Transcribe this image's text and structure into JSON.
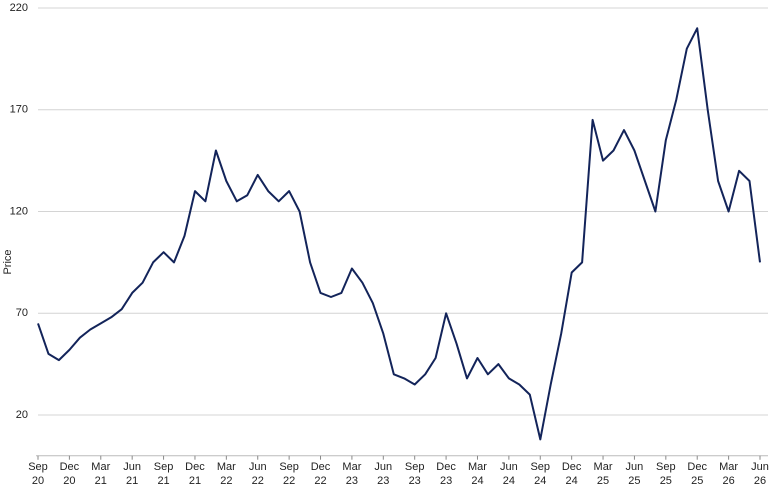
{
  "chart_data": {
    "type": "line",
    "y_label": "Price",
    "x": [
      "2020-09",
      "2020-10",
      "2020-11",
      "2020-12",
      "2021-01",
      "2021-02",
      "2021-03",
      "2021-04",
      "2021-05",
      "2021-06",
      "2021-07",
      "2021-08",
      "2021-09",
      "2021-10",
      "2021-11",
      "2021-12",
      "2022-01",
      "2022-02",
      "2022-03",
      "2022-04",
      "2022-05",
      "2022-06",
      "2022-07",
      "2022-08",
      "2022-09",
      "2022-10",
      "2022-11",
      "2022-12",
      "2023-01",
      "2023-02",
      "2023-03",
      "2023-04",
      "2023-05",
      "2023-06",
      "2023-07",
      "2023-08",
      "2023-09",
      "2023-10",
      "2023-11",
      "2023-12",
      "2024-01",
      "2024-02",
      "2024-03",
      "2024-04",
      "2024-05",
      "2024-06",
      "2024-07",
      "2024-08",
      "2024-09",
      "2024-10",
      "2024-11",
      "2024-12",
      "2025-01",
      "2025-02",
      "2025-03",
      "2025-04",
      "2025-05",
      "2025-06",
      "2025-07",
      "2025-08",
      "2025-09",
      "2025-10",
      "2025-11",
      "2025-12",
      "2026-01",
      "2026-02",
      "2026-03",
      "2026-04",
      "2026-05",
      "2026-06"
    ],
    "series": [
      {
        "name": "Price",
        "color": "#13245a",
        "values": [
          65,
          50,
          47,
          52,
          58,
          62,
          65,
          68,
          72,
          80,
          85,
          95,
          100,
          95,
          108,
          130,
          125,
          150,
          135,
          125,
          128,
          138,
          130,
          125,
          130,
          120,
          95,
          80,
          78,
          80,
          92,
          85,
          75,
          60,
          40,
          38,
          35,
          40,
          48,
          70,
          55,
          38,
          48,
          40,
          45,
          38,
          35,
          30,
          8,
          35,
          60,
          90,
          95,
          165,
          145,
          150,
          160,
          150,
          135,
          120,
          155,
          175,
          200,
          210,
          170,
          135,
          120,
          140,
          135,
          95
        ]
      }
    ],
    "xlim": [
      "2020-09",
      "2026-06"
    ],
    "xticks": [
      {
        "value": "2020-09",
        "label": "Sep 20"
      },
      {
        "value": "2020-12",
        "label": "Dec 20"
      },
      {
        "value": "2021-03",
        "label": "Mar 21"
      },
      {
        "value": "2021-06",
        "label": "Jun 21"
      },
      {
        "value": "2021-09",
        "label": "Sep 21"
      },
      {
        "value": "2021-12",
        "label": "Dec 21"
      },
      {
        "value": "2022-03",
        "label": "Mar 22"
      },
      {
        "value": "2022-06",
        "label": "Jun 22"
      },
      {
        "value": "2022-09",
        "label": "Sep 22"
      },
      {
        "value": "2022-12",
        "label": "Dec 22"
      },
      {
        "value": "2023-03",
        "label": "Mar 23"
      },
      {
        "value": "2023-06",
        "label": "Jun 23"
      },
      {
        "value": "2023-09",
        "label": "Sep 23"
      },
      {
        "value": "2023-12",
        "label": "Dec 23"
      },
      {
        "value": "2024-03",
        "label": "Mar 24"
      },
      {
        "value": "2024-06",
        "label": "Jun 24"
      },
      {
        "value": "2024-09",
        "label": "Sep 24"
      },
      {
        "value": "2024-12",
        "label": "Dec 24"
      },
      {
        "value": "2025-03",
        "label": "Mar 25"
      },
      {
        "value": "2025-06",
        "label": "Jun 25"
      },
      {
        "value": "2025-09",
        "label": "Sep 25"
      },
      {
        "value": "2025-12",
        "label": "Dec 25"
      },
      {
        "value": "2026-03",
        "label": "Mar 26"
      },
      {
        "value": "2026-06",
        "label": "Jun 26"
      }
    ],
    "ylim": [
      0,
      220
    ],
    "yticks": [
      20,
      70,
      120,
      170,
      220
    ],
    "grid": true
  }
}
